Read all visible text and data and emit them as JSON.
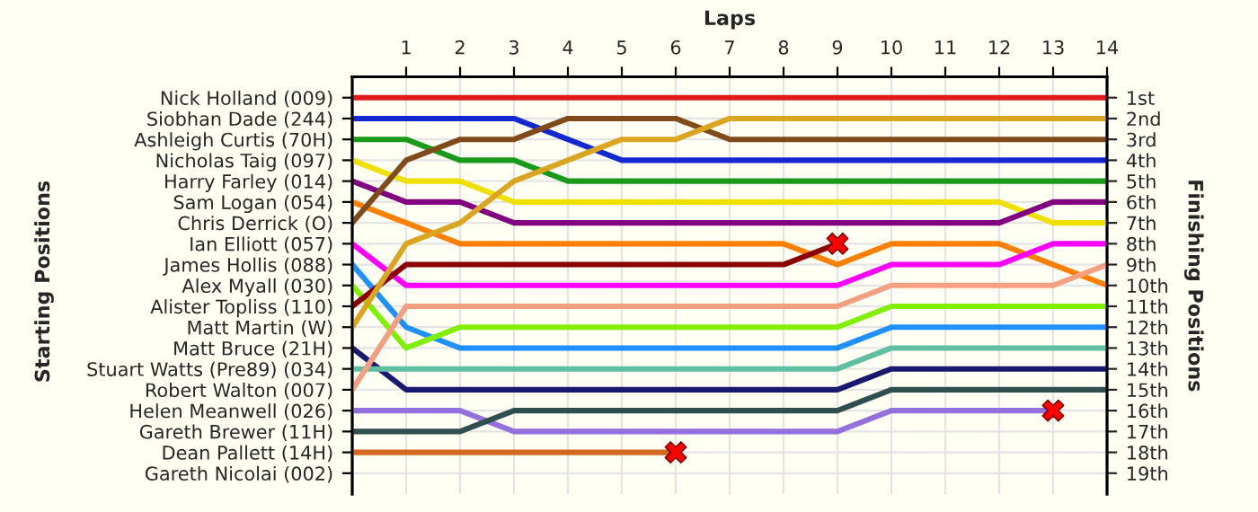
{
  "chart_data": {
    "type": "line",
    "xlabel": "Laps",
    "annotations": [
      "Starting Positions"
    ],
    "y2label": "Finishing Positions",
    "x": [
      0,
      1,
      2,
      3,
      4,
      5,
      6,
      7,
      8,
      9,
      10,
      11,
      12,
      13,
      14
    ],
    "xlim": [
      0,
      14
    ],
    "xticks": [
      1,
      2,
      3,
      4,
      5,
      6,
      7,
      8,
      9,
      10,
      11,
      12,
      13,
      14
    ],
    "y_categories": [
      "Nick Holland (009)",
      "Siobhan Dade (244)",
      "Ashleigh Curtis (70H)",
      "Nicholas Taig (097)",
      "Harry Farley (014)",
      "Sam Logan (054)",
      "Chris Derrick (O)",
      "Ian Elliott (057)",
      "James Hollis (088)",
      "Alex Myall (030)",
      "Alister Topliss (110)",
      "Matt Martin (W)",
      "Matt Bruce (21H)",
      "Stuart Watts (Pre89) (034)",
      "Robert Walton (007)",
      "Helen Meanwell (026)",
      "Gareth Brewer (11H)",
      "Dean Pallett (14H)",
      "Gareth Nicolai (002)"
    ],
    "y2lim": [
      20,
      0
    ],
    "y2ticks": [
      {
        "value": 1,
        "label": "1st"
      },
      {
        "value": 2,
        "label": "2nd"
      },
      {
        "value": 3,
        "label": "3rd"
      },
      {
        "value": 4,
        "label": "4th"
      },
      {
        "value": 5,
        "label": "5th"
      },
      {
        "value": 6,
        "label": "6th"
      },
      {
        "value": 7,
        "label": "7th"
      },
      {
        "value": 8,
        "label": "8th"
      },
      {
        "value": 9,
        "label": "9th"
      },
      {
        "value": 10,
        "label": "10th"
      },
      {
        "value": 11,
        "label": "11th"
      },
      {
        "value": 12,
        "label": "12th"
      },
      {
        "value": 13,
        "label": "13th"
      },
      {
        "value": 14,
        "label": "14th"
      },
      {
        "value": 15,
        "label": "15th"
      },
      {
        "value": 16,
        "label": "16th"
      },
      {
        "value": 17,
        "label": "17th"
      },
      {
        "value": 18,
        "label": "18th"
      },
      {
        "value": 19,
        "label": "19th"
      }
    ],
    "grid": true,
    "legend": false,
    "marker": "none",
    "line_style": "solid",
    "series": [
      {
        "axis": "y2",
        "color": "#e31a1c",
        "values": [
          1,
          1,
          1,
          1,
          1,
          1,
          1,
          1,
          1,
          1,
          1,
          1,
          1,
          1,
          1
        ]
      },
      {
        "axis": "y2",
        "color": "#1428d2",
        "values": [
          2,
          2,
          2,
          2,
          3,
          4,
          4,
          4,
          4,
          4,
          4,
          4,
          4,
          4,
          4
        ]
      },
      {
        "axis": "y2",
        "color": "#1a9a1a",
        "values": [
          3,
          3,
          4,
          4,
          5,
          5,
          5,
          5,
          5,
          5,
          5,
          5,
          5,
          5,
          5
        ]
      },
      {
        "axis": "y2",
        "color": "#f0e000",
        "values": [
          4,
          5,
          5,
          6,
          6,
          6,
          6,
          6,
          6,
          6,
          6,
          6,
          6,
          7,
          7
        ]
      },
      {
        "axis": "y2",
        "color": "#800080",
        "values": [
          5,
          6,
          6,
          7,
          7,
          7,
          7,
          7,
          7,
          7,
          7,
          7,
          7,
          6,
          6
        ]
      },
      {
        "axis": "y2",
        "color": "#ff8000",
        "values": [
          6,
          7,
          8,
          8,
          8,
          8,
          8,
          8,
          8,
          9,
          8,
          8,
          8,
          9,
          10
        ]
      },
      {
        "axis": "y2",
        "color": "#804a1a",
        "values": [
          7,
          4,
          3,
          3,
          2,
          2,
          2,
          3,
          3,
          3,
          3,
          3,
          3,
          3,
          3
        ]
      },
      {
        "axis": "y2",
        "color": "#ff00ff",
        "values": [
          8,
          10,
          10,
          10,
          10,
          10,
          10,
          10,
          10,
          10,
          9,
          9,
          9,
          8,
          8
        ]
      },
      {
        "axis": "y2",
        "color": "#1e90ff",
        "values": [
          9,
          12,
          13,
          13,
          13,
          13,
          13,
          13,
          13,
          13,
          12,
          12,
          12,
          12,
          12
        ]
      },
      {
        "axis": "y2",
        "color": "#80f000",
        "values": [
          10,
          13,
          12,
          12,
          12,
          12,
          12,
          12,
          12,
          12,
          11,
          11,
          11,
          11,
          11
        ]
      },
      {
        "axis": "y2",
        "color": "#8b0000",
        "values": [
          11,
          9,
          9,
          9,
          9,
          9,
          9,
          9,
          9,
          8,
          null,
          null,
          null,
          null,
          null
        ]
      },
      {
        "axis": "y2",
        "color": "#daa520",
        "values": [
          12,
          8,
          7,
          5,
          4,
          3,
          3,
          2,
          2,
          2,
          2,
          2,
          2,
          2,
          2
        ]
      },
      {
        "axis": "y2",
        "color": "#191970",
        "values": [
          13,
          15,
          15,
          15,
          15,
          15,
          15,
          15,
          15,
          15,
          14,
          14,
          14,
          14,
          14
        ]
      },
      {
        "axis": "y2",
        "color": "#5fbfa0",
        "values": [
          14,
          14,
          14,
          14,
          14,
          14,
          14,
          14,
          14,
          14,
          13,
          13,
          13,
          13,
          13
        ]
      },
      {
        "axis": "y2",
        "color": "#f4a080",
        "values": [
          15,
          11,
          11,
          11,
          11,
          11,
          11,
          11,
          11,
          11,
          10,
          10,
          10,
          10,
          9
        ]
      },
      {
        "axis": "y2",
        "color": "#9370db",
        "values": [
          16,
          16,
          16,
          17,
          17,
          17,
          17,
          17,
          17,
          17,
          16,
          16,
          16,
          16,
          null
        ]
      },
      {
        "axis": "y2",
        "color": "#2f4f4f",
        "values": [
          17,
          17,
          17,
          16,
          16,
          16,
          16,
          16,
          16,
          16,
          15,
          15,
          15,
          15,
          15
        ]
      },
      {
        "axis": "y2",
        "color": "#d2691e",
        "values": [
          18,
          18,
          18,
          18,
          18,
          18,
          18,
          null,
          null,
          null,
          null,
          null,
          null,
          null,
          null
        ]
      },
      {
        "axis": "y2",
        "type": "scatter",
        "marker": "cross",
        "color": "#ff0000",
        "x": [
          9,
          13,
          6
        ],
        "values": [
          8,
          16,
          18
        ]
      }
    ]
  }
}
